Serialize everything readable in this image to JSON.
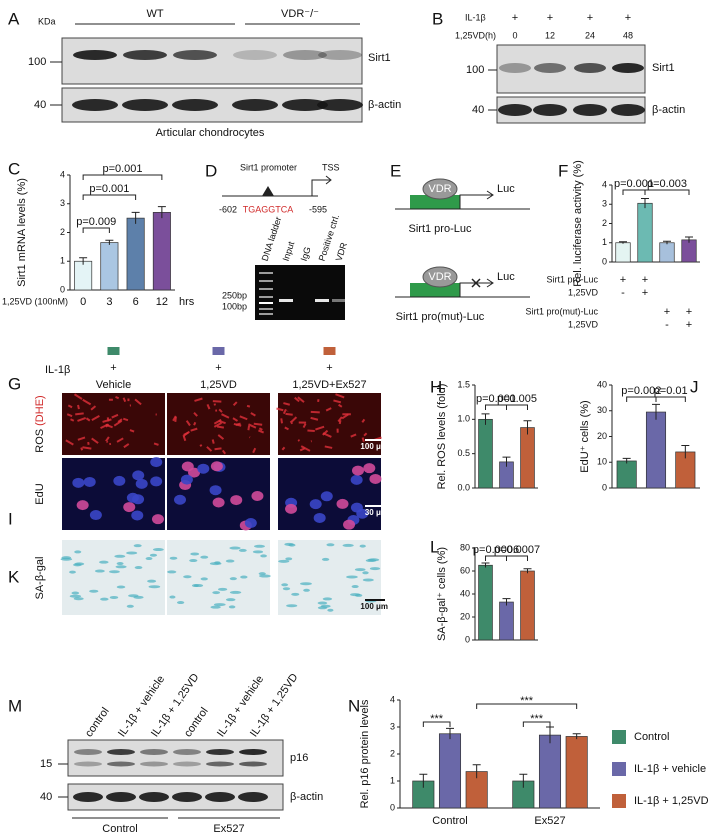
{
  "panel_labels": [
    "A",
    "B",
    "C",
    "D",
    "E",
    "F",
    "G",
    "H",
    "I",
    "J",
    "K",
    "L",
    "M",
    "N"
  ],
  "panel_a": {
    "kda": "KDa",
    "groups": [
      "WT",
      "VDR⁻/⁻"
    ],
    "markers": [
      "100",
      "40"
    ],
    "proteins": [
      "Sirt1",
      "β-actin"
    ],
    "caption": "Articular chondrocytes"
  },
  "panel_b": {
    "rows": [
      "IL-1β",
      "1,25VD(h)"
    ],
    "il1b": [
      "+",
      "+",
      "+",
      "+"
    ],
    "hours": [
      "0",
      "12",
      "24",
      "48"
    ],
    "markers": [
      "100",
      "40"
    ],
    "proteins": [
      "Sirt1",
      "β-actin"
    ]
  },
  "panel_d": {
    "promoter": "Sirt1 promoter",
    "tss": "TSS",
    "start": "-602",
    "motif": "TGAGGTCA",
    "end": "-595",
    "lanes": [
      "DNA ladder",
      "Input",
      "IgG",
      "Positive ctrl.",
      "VDR"
    ],
    "sizes": [
      "250bp",
      "100bp"
    ]
  },
  "panel_e": {
    "constructs": [
      {
        "factor": "VDR",
        "reporter": "Luc",
        "name": "Sirt1 pro-Luc"
      },
      {
        "factor": "VDR",
        "reporter": "Luc",
        "name": "Sirt1 pro(mut)-Luc"
      }
    ]
  },
  "panel_g": {
    "row_label": "IL-1β",
    "signs": [
      "+",
      "+",
      "+"
    ],
    "colors": [
      "#3e8a6a",
      "#6a68a8",
      "#c0603a"
    ],
    "conditions": [
      "Vehicle",
      "1,25VD",
      "1,25VD+Ex527"
    ],
    "stains": [
      {
        "name": "ROS",
        "probe": "(DHE)",
        "scale": "100 μm"
      },
      {
        "name": "EdU",
        "scale": "30 μm"
      },
      {
        "name": "SA-β-gal",
        "scale": "100 μm"
      }
    ]
  },
  "panel_m": {
    "lanes": [
      "control",
      "IL-1β + vehicle",
      "IL-1β + 1,25VD",
      "control",
      "IL-1β + vehicle",
      "IL-1β + 1,25VD"
    ],
    "markers": [
      "15",
      "40"
    ],
    "proteins": [
      "p16",
      "β-actin"
    ],
    "groups": [
      "Control",
      "Ex527"
    ]
  },
  "chart_data": [
    {
      "type": "bar",
      "y_label": "Sirt1 mRNA levels (%)",
      "x_label": "1,25VD (100nM)",
      "x_unit": "hrs",
      "categories": [
        "0",
        "3",
        "6",
        "12"
      ],
      "values": [
        1.0,
        1.65,
        2.5,
        2.7
      ],
      "errors": [
        0.12,
        0.08,
        0.2,
        0.2
      ],
      "colors": [
        "#e4f4f6",
        "#aac6e2",
        "#5d80aa",
        "#7b4f9b"
      ],
      "ylim": [
        0,
        4
      ],
      "yticks": [
        0,
        1,
        2,
        3,
        4
      ],
      "annotations": [
        "p=0.009",
        "p=0.001",
        "p=0.001"
      ]
    },
    {
      "type": "bar",
      "y_label": "Rel. luciferase activity (%)",
      "values": [
        1.0,
        3.05,
        1.0,
        1.15
      ],
      "errors": [
        0.05,
        0.25,
        0.08,
        0.15
      ],
      "colors": [
        "#e4f4f2",
        "#6cbab2",
        "#a7c0dc",
        "#7b4f9b"
      ],
      "ylim": [
        0,
        4
      ],
      "yticks": [
        0,
        1,
        2,
        3,
        4
      ],
      "annotations": [
        "p=0.001",
        "p=0.003"
      ],
      "conditions": [
        {
          "label": "Sirt1 pro-Luc",
          "signs": [
            "+",
            "+",
            null,
            null
          ]
        },
        {
          "label": "1,25VD",
          "signs": [
            "-",
            "+",
            null,
            null
          ]
        },
        {
          "label": "Sirt1 pro(mut)-Luc",
          "signs": [
            null,
            null,
            "+",
            "+"
          ]
        },
        {
          "label": "1,25VD",
          "signs": [
            null,
            null,
            "-",
            "+"
          ]
        }
      ]
    },
    {
      "type": "bar",
      "y_label": "Rel. ROS levels (fold)",
      "values": [
        1.0,
        0.38,
        0.88
      ],
      "errors": [
        0.08,
        0.07,
        0.1
      ],
      "colors": [
        "#3e8a6a",
        "#6a68a8",
        "#c0603a"
      ],
      "ylim": [
        0,
        1.5
      ],
      "yticks": [
        {
          "value": 0,
          "label": "0.0"
        },
        0.5,
        {
          "value": 1,
          "label": "1.0"
        },
        1.5
      ],
      "annotations": [
        "p=0.001",
        "p=0.005"
      ]
    },
    {
      "type": "bar",
      "y_label": "EdU⁺ cells (%)",
      "values": [
        10.5,
        29.5,
        14
      ],
      "errors": [
        1,
        3,
        2.5
      ],
      "colors": [
        "#3e8a6a",
        "#6a68a8",
        "#c0603a"
      ],
      "ylim": [
        0,
        40
      ],
      "yticks": [
        0,
        10,
        20,
        30,
        40
      ],
      "annotations": [
        "p=0.002",
        "p=0.01"
      ]
    },
    {
      "type": "bar",
      "y_label": "SA-β-gal⁺ cells (%)",
      "values": [
        65,
        33,
        60
      ],
      "errors": [
        2,
        3,
        2
      ],
      "colors": [
        "#3e8a6a",
        "#6a68a8",
        "#c0603a"
      ],
      "ylim": [
        0,
        80
      ],
      "yticks": [
        0,
        20,
        40,
        60,
        80
      ],
      "annotations": [
        "p=0.0006",
        "p=0.0007"
      ]
    },
    {
      "type": "grouped_bar",
      "y_label": "Rel. p16 protein levels",
      "categories": [
        "Control",
        "Ex527"
      ],
      "series": [
        {
          "name": "Control",
          "color": "#3e8a6a",
          "values": [
            1.0,
            1.0
          ],
          "errors": [
            0.25,
            0.25
          ]
        },
        {
          "name": "IL-1β + vehicle",
          "color": "#6a68a8",
          "values": [
            2.75,
            2.7
          ],
          "errors": [
            0.2,
            0.3
          ]
        },
        {
          "name": "IL-1β + 1,25VD",
          "color": "#c0603a",
          "values": [
            1.35,
            2.65
          ],
          "errors": [
            0.25,
            0.1
          ]
        }
      ],
      "ylim": [
        0,
        4
      ],
      "yticks": [
        0,
        1,
        2,
        3,
        4
      ],
      "annotations": [
        "***",
        "***",
        "***"
      ],
      "legend": "right"
    }
  ]
}
